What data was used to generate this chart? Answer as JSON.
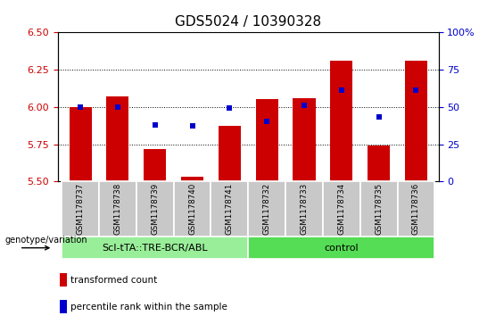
{
  "title": "GDS5024 / 10390328",
  "samples": [
    "GSM1178737",
    "GSM1178738",
    "GSM1178739",
    "GSM1178740",
    "GSM1178741",
    "GSM1178732",
    "GSM1178733",
    "GSM1178734",
    "GSM1178735",
    "GSM1178736"
  ],
  "bar_values": [
    6.0,
    6.07,
    5.72,
    5.53,
    5.87,
    6.05,
    6.06,
    6.31,
    5.74,
    6.31
  ],
  "dot_values_pct": [
    50,
    50,
    38,
    37,
    49,
    40,
    51,
    61,
    43,
    61
  ],
  "ylim_left": [
    5.5,
    6.5
  ],
  "ylim_right": [
    0,
    100
  ],
  "bar_color": "#cc0000",
  "dot_color": "#0000cc",
  "bg_color": "#ffffff",
  "tick_color_left": "#cc0000",
  "tick_color_right": "#0000cc",
  "sample_box_color": "#c8c8c8",
  "groups": [
    {
      "label": "ScI-tTA::TRE-BCR/ABL",
      "start": 0,
      "end": 5,
      "color": "#99ee99"
    },
    {
      "label": "control",
      "start": 5,
      "end": 10,
      "color": "#55dd55"
    }
  ],
  "genotype_label": "genotype/variation",
  "legend_items": [
    {
      "color": "#cc0000",
      "label": "transformed count"
    },
    {
      "color": "#0000cc",
      "label": "percentile rank within the sample"
    }
  ],
  "yticks_left": [
    5.5,
    5.75,
    6.0,
    6.25,
    6.5
  ],
  "yticks_right": [
    0,
    25,
    50,
    75,
    100
  ],
  "base_value": 5.5,
  "grid_lines": [
    5.75,
    6.0,
    6.25
  ],
  "bar_width": 0.6
}
